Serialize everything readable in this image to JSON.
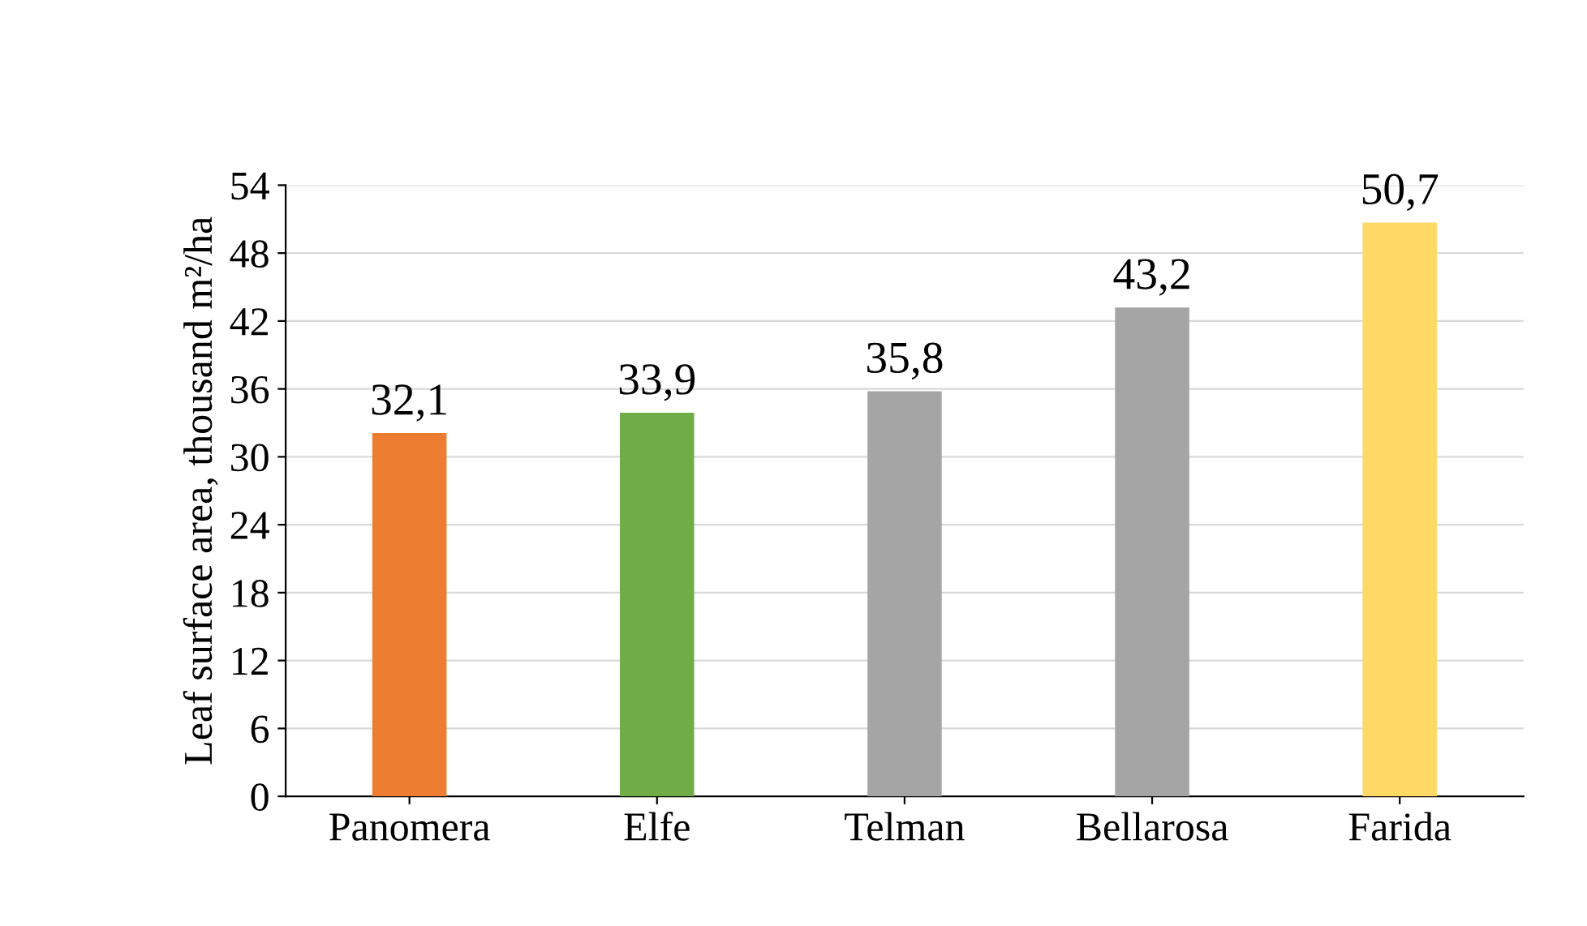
{
  "chart_data": {
    "type": "bar",
    "ylabel": "Leaf surface area, thousand m²/ha",
    "categories": [
      "Panomera",
      "Elfe",
      "Telman",
      "Bellarosa",
      "Farida"
    ],
    "values": [
      32.1,
      33.9,
      35.8,
      43.2,
      50.7
    ],
    "colors": [
      "#ed7d31",
      "#70ad47",
      "#a5a5a5",
      "#a5a5a5",
      "#ffd966"
    ],
    "value_labels": [
      "32,1",
      "33,9",
      "35,8",
      "43,2",
      "50,7"
    ],
    "ylim": [
      0,
      54
    ],
    "yticks": [
      0,
      6,
      12,
      18,
      24,
      30,
      36,
      42,
      48,
      54
    ],
    "grid": "y"
  }
}
